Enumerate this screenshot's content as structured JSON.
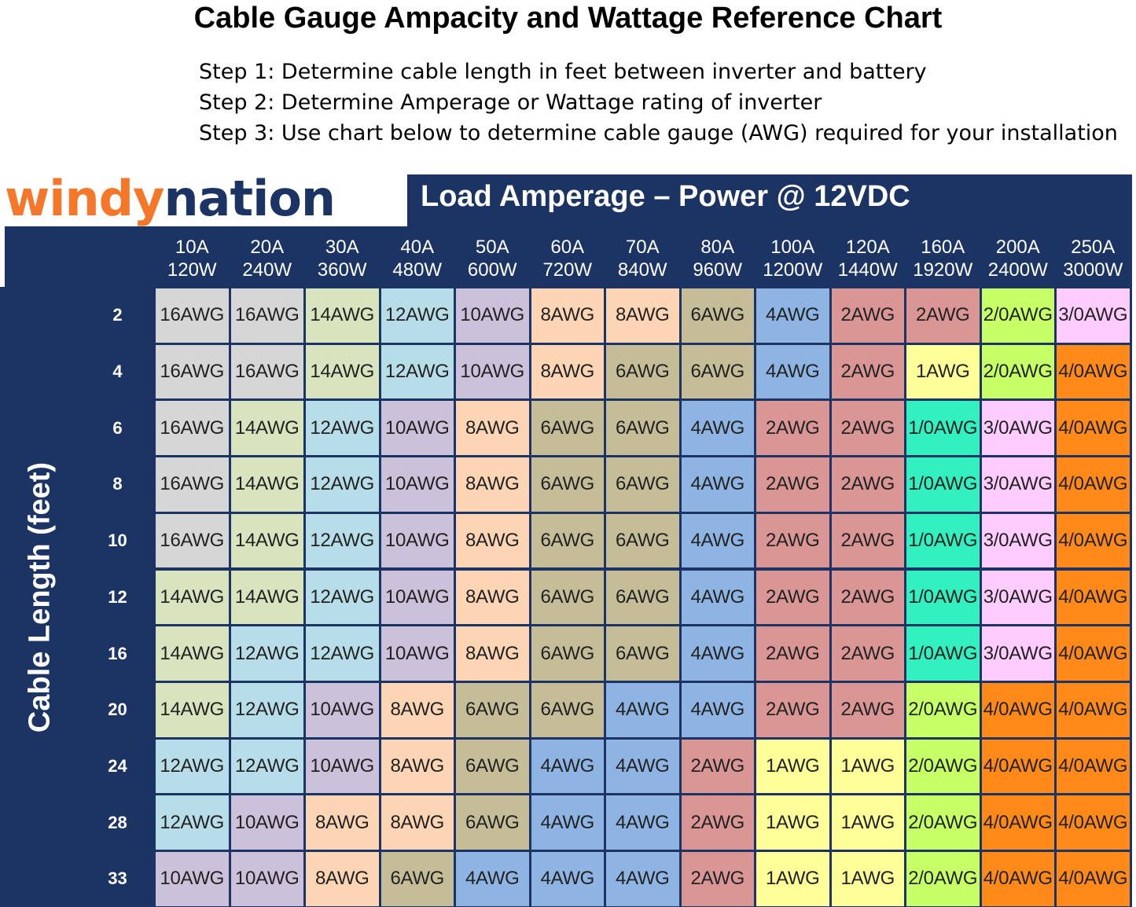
{
  "title": "Cable Gauge Ampacity and Wattage Reference Chart",
  "steps": [
    "Step 1: Determine cable length in feet between inverter and battery",
    "Step 2: Determine Amperage or Wattage rating of inverter",
    "Step 3: Use chart below to determine cable gauge (AWG) required for your installation"
  ],
  "logo": {
    "part1": "windy",
    "part2": "nation"
  },
  "colors": {
    "navy": "#1c3463",
    "16AWG": "#d6d6d6",
    "14AWG": "#d7e4bd",
    "12AWG": "#b7dee8",
    "10AWG": "#ccc1da",
    "8AWG": "#fcd5b5",
    "6AWG": "#c4bd97",
    "4AWG": "#8db4e2",
    "2AWG": "#d99694",
    "1AWG": "#ffff99",
    "1/0AWG": "#33f0c0",
    "2/0AWG": "#c6ff66",
    "3/0AWG": "#ffccff",
    "4/0AWG": "#ff8a1a"
  },
  "chart_data": {
    "type": "table",
    "header": "Load Amperage – Power @ 12VDC",
    "ylabel": "Cable Length (feet)",
    "columns": [
      {
        "amps": "10A",
        "watts": "120W"
      },
      {
        "amps": "20A",
        "watts": "240W"
      },
      {
        "amps": "30A",
        "watts": "360W"
      },
      {
        "amps": "40A",
        "watts": "480W"
      },
      {
        "amps": "50A",
        "watts": "600W"
      },
      {
        "amps": "60A",
        "watts": "720W"
      },
      {
        "amps": "70A",
        "watts": "840W"
      },
      {
        "amps": "80A",
        "watts": "960W"
      },
      {
        "amps": "100A",
        "watts": "1200W"
      },
      {
        "amps": "120A",
        "watts": "1440W"
      },
      {
        "amps": "160A",
        "watts": "1920W"
      },
      {
        "amps": "200A",
        "watts": "2400W"
      },
      {
        "amps": "250A",
        "watts": "3000W"
      }
    ],
    "rows": [
      {
        "length": "2",
        "cells": [
          "16AWG",
          "16AWG",
          "14AWG",
          "12AWG",
          "10AWG",
          "8AWG",
          "8AWG",
          "6AWG",
          "4AWG",
          "2AWG",
          "2AWG",
          "2/0AWG",
          "3/0AWG"
        ]
      },
      {
        "length": "4",
        "cells": [
          "16AWG",
          "16AWG",
          "14AWG",
          "12AWG",
          "10AWG",
          "8AWG",
          "6AWG",
          "6AWG",
          "4AWG",
          "2AWG",
          "1AWG",
          "2/0AWG",
          "4/0AWG"
        ]
      },
      {
        "length": "6",
        "cells": [
          "16AWG",
          "14AWG",
          "12AWG",
          "10AWG",
          "8AWG",
          "6AWG",
          "6AWG",
          "4AWG",
          "2AWG",
          "2AWG",
          "1/0AWG",
          "3/0AWG",
          "4/0AWG"
        ]
      },
      {
        "length": "8",
        "cells": [
          "16AWG",
          "14AWG",
          "12AWG",
          "10AWG",
          "8AWG",
          "6AWG",
          "6AWG",
          "4AWG",
          "2AWG",
          "2AWG",
          "1/0AWG",
          "3/0AWG",
          "4/0AWG"
        ]
      },
      {
        "length": "10",
        "cells": [
          "16AWG",
          "14AWG",
          "12AWG",
          "10AWG",
          "8AWG",
          "6AWG",
          "6AWG",
          "4AWG",
          "2AWG",
          "2AWG",
          "1/0AWG",
          "3/0AWG",
          "4/0AWG"
        ]
      },
      {
        "length": "12",
        "cells": [
          "14AWG",
          "14AWG",
          "12AWG",
          "10AWG",
          "8AWG",
          "6AWG",
          "6AWG",
          "4AWG",
          "2AWG",
          "2AWG",
          "1/0AWG",
          "3/0AWG",
          "4/0AWG"
        ]
      },
      {
        "length": "16",
        "cells": [
          "14AWG",
          "12AWG",
          "12AWG",
          "10AWG",
          "8AWG",
          "6AWG",
          "6AWG",
          "4AWG",
          "2AWG",
          "2AWG",
          "1/0AWG",
          "3/0AWG",
          "4/0AWG"
        ]
      },
      {
        "length": "20",
        "cells": [
          "14AWG",
          "12AWG",
          "10AWG",
          "8AWG",
          "6AWG",
          "6AWG",
          "4AWG",
          "4AWG",
          "2AWG",
          "2AWG",
          "2/0AWG",
          "4/0AWG",
          "4/0AWG"
        ]
      },
      {
        "length": "24",
        "cells": [
          "12AWG",
          "12AWG",
          "10AWG",
          "8AWG",
          "6AWG",
          "4AWG",
          "4AWG",
          "2AWG",
          "1AWG",
          "1AWG",
          "2/0AWG",
          "4/0AWG",
          "4/0AWG"
        ]
      },
      {
        "length": "28",
        "cells": [
          "12AWG",
          "10AWG",
          "8AWG",
          "8AWG",
          "6AWG",
          "4AWG",
          "4AWG",
          "2AWG",
          "1AWG",
          "1AWG",
          "2/0AWG",
          "4/0AWG",
          "4/0AWG"
        ]
      },
      {
        "length": "33",
        "cells": [
          "10AWG",
          "10AWG",
          "8AWG",
          "6AWG",
          "4AWG",
          "4AWG",
          "4AWG",
          "2AWG",
          "1AWG",
          "1AWG",
          "2/0AWG",
          "4/0AWG",
          "4/0AWG"
        ]
      }
    ]
  }
}
